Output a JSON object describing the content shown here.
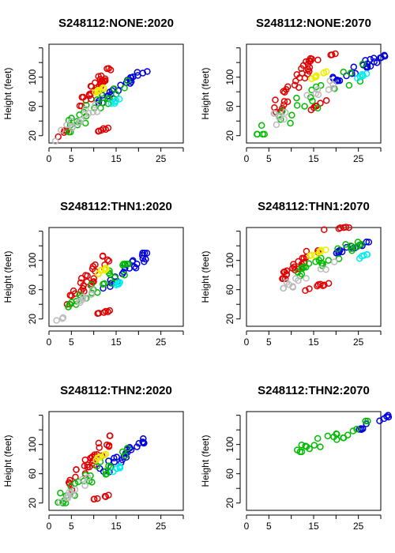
{
  "chart_data": {
    "type": "scatter",
    "xlim": [
      0,
      30
    ],
    "ylim": [
      10,
      145
    ],
    "x_ticks": [
      0,
      5,
      15,
      25
    ],
    "y_ticks": [
      20,
      60,
      100
    ],
    "y_minor_ticks": [
      40,
      80,
      120,
      140
    ],
    "x_minor_ticks": [
      10,
      20,
      30
    ],
    "colors": [
      "#e00000",
      "#0000dd",
      "#00bb00",
      "#eeee00",
      "#bbbbbb",
      "#00eeee"
    ],
    "panels": [
      {
        "title": "S248112:NONE:2020",
        "ylabel": "Height (feet)",
        "xlabel": "",
        "show_ylabel": true,
        "clusters": [
          {
            "color": "#e00000",
            "n": 30,
            "x": [
              6,
              14
            ],
            "y": [
              55,
              112
            ]
          },
          {
            "color": "#e00000",
            "n": 6,
            "x": [
              10,
              14
            ],
            "y": [
              25,
              32
            ]
          },
          {
            "color": "#e00000",
            "n": 5,
            "x": [
              2,
              5
            ],
            "y": [
              18,
              32
            ]
          },
          {
            "color": "#0000dd",
            "n": 25,
            "x": [
              11,
              22
            ],
            "y": [
              65,
              108
            ]
          },
          {
            "color": "#00bb00",
            "n": 25,
            "x": [
              3,
              18
            ],
            "y": [
              25,
              95
            ]
          },
          {
            "color": "#eeee00",
            "n": 8,
            "x": [
              10,
              13
            ],
            "y": [
              78,
              88
            ]
          },
          {
            "color": "#bbbbbb",
            "n": 15,
            "x": [
              1,
              11
            ],
            "y": [
              12,
              62
            ]
          },
          {
            "color": "#00eeee",
            "n": 5,
            "x": [
              13,
              16
            ],
            "y": [
              60,
              70
            ]
          }
        ]
      },
      {
        "title": "S248112:NONE:2070",
        "ylabel": "Height (feet)",
        "xlabel": "",
        "show_ylabel": true,
        "clusters": [
          {
            "color": "#e00000",
            "n": 30,
            "x": [
              6,
              16
            ],
            "y": [
              52,
              130
            ]
          },
          {
            "color": "#e00000",
            "n": 6,
            "x": [
              13,
              18
            ],
            "y": [
              52,
              68
            ]
          },
          {
            "color": "#e00000",
            "n": 6,
            "x": [
              14,
              20
            ],
            "y": [
              122,
              132
            ]
          },
          {
            "color": "#0000dd",
            "n": 25,
            "x": [
              19,
              31
            ],
            "y": [
              95,
              130
            ]
          },
          {
            "color": "#00bb00",
            "n": 25,
            "x": [
              2,
              28
            ],
            "y": [
              22,
              118
            ]
          },
          {
            "color": "#eeee00",
            "n": 8,
            "x": [
              14,
              18
            ],
            "y": [
              96,
              108
            ]
          },
          {
            "color": "#bbbbbb",
            "n": 15,
            "x": [
              4,
              20
            ],
            "y": [
              35,
              95
            ]
          },
          {
            "color": "#00eeee",
            "n": 6,
            "x": [
              23,
              27
            ],
            "y": [
              96,
              105
            ]
          }
        ]
      },
      {
        "title": "S248112:THN1:2020",
        "ylabel": "Height (feet)",
        "xlabel": "",
        "show_ylabel": true,
        "clusters": [
          {
            "color": "#e00000",
            "n": 30,
            "x": [
              4,
              14
            ],
            "y": [
              40,
              112
            ]
          },
          {
            "color": "#e00000",
            "n": 6,
            "x": [
              10,
              14
            ],
            "y": [
              25,
              32
            ]
          },
          {
            "color": "#0000dd",
            "n": 25,
            "x": [
              12,
              22
            ],
            "y": [
              62,
              110
            ]
          },
          {
            "color": "#00bb00",
            "n": 25,
            "x": [
              3,
              18
            ],
            "y": [
              30,
              95
            ]
          },
          {
            "color": "#eeee00",
            "n": 8,
            "x": [
              10,
              13
            ],
            "y": [
              78,
              90
            ]
          },
          {
            "color": "#bbbbbb",
            "n": 10,
            "x": [
              1,
              10
            ],
            "y": [
              18,
              60
            ]
          },
          {
            "color": "#00eeee",
            "n": 5,
            "x": [
              14,
              16
            ],
            "y": [
              60,
              70
            ]
          }
        ]
      },
      {
        "title": "S248112:THN1:2070",
        "ylabel": "Height (feet)",
        "xlabel": "",
        "show_ylabel": true,
        "clusters": [
          {
            "color": "#e00000",
            "n": 25,
            "x": [
              8,
              17
            ],
            "y": [
              75,
              125
            ]
          },
          {
            "color": "#e00000",
            "n": 8,
            "x": [
              13,
              19
            ],
            "y": [
              58,
              72
            ]
          },
          {
            "color": "#e00000",
            "n": 6,
            "x": [
              17,
              24
            ],
            "y": [
              142,
              146
            ]
          },
          {
            "color": "#0000dd",
            "n": 15,
            "x": [
              20,
              28
            ],
            "y": [
              110,
              128
            ]
          },
          {
            "color": "#00bb00",
            "n": 25,
            "x": [
              9,
              26
            ],
            "y": [
              78,
              125
            ]
          },
          {
            "color": "#eeee00",
            "n": 8,
            "x": [
              14,
              18
            ],
            "y": [
              105,
              116
            ]
          },
          {
            "color": "#bbbbbb",
            "n": 12,
            "x": [
              8,
              21
            ],
            "y": [
              62,
              100
            ]
          },
          {
            "color": "#00eeee",
            "n": 5,
            "x": [
              24,
              27
            ],
            "y": [
              100,
              108
            ]
          }
        ]
      },
      {
        "title": "S248112:THN2:2020",
        "ylabel": "Height (feet)",
        "xlabel": "",
        "show_ylabel": true,
        "clusters": [
          {
            "color": "#e00000",
            "n": 30,
            "x": [
              4,
              14
            ],
            "y": [
              38,
              112
            ]
          },
          {
            "color": "#e00000",
            "n": 6,
            "x": [
              10,
              14
            ],
            "y": [
              25,
              32
            ]
          },
          {
            "color": "#0000dd",
            "n": 25,
            "x": [
              11,
              22
            ],
            "y": [
              60,
              108
            ]
          },
          {
            "color": "#00bb00",
            "n": 25,
            "x": [
              2,
              18
            ],
            "y": [
              20,
              95
            ]
          },
          {
            "color": "#eeee00",
            "n": 8,
            "x": [
              10,
              13
            ],
            "y": [
              78,
              88
            ]
          },
          {
            "color": "#bbbbbb",
            "n": 12,
            "x": [
              1,
              9
            ],
            "y": [
              15,
              55
            ]
          },
          {
            "color": "#00eeee",
            "n": 5,
            "x": [
              14,
              16
            ],
            "y": [
              60,
              70
            ]
          }
        ]
      },
      {
        "title": "S248112:THN2:2070",
        "ylabel": "Height (feet)",
        "xlabel": "",
        "show_ylabel": true,
        "clusters": [
          {
            "color": "#0000dd",
            "n": 10,
            "x": [
              25,
              32
            ],
            "y": [
              120,
              140
            ]
          },
          {
            "color": "#00bb00",
            "n": 22,
            "x": [
              11,
              28
            ],
            "y": [
              90,
              132
            ]
          }
        ]
      }
    ]
  }
}
